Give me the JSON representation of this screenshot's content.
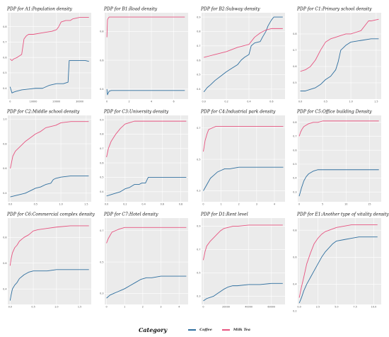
{
  "legend": {
    "title": "Category",
    "items": [
      {
        "name": "Coffee",
        "color": "#2f6f9f"
      },
      {
        "name": "Milk Tea",
        "color": "#e75480"
      }
    ]
  },
  "chart_data": [
    {
      "type": "line",
      "title": "PDP for A1:Population  density",
      "xticks": [
        "0",
        "10000",
        "20000",
        "30000"
      ],
      "xlim": [
        -1000,
        35000
      ],
      "yticks": [
        "0.4",
        "0.5",
        "0.6",
        "0.7",
        "0.8"
      ],
      "ylim": [
        0.33,
        0.89
      ],
      "series": [
        {
          "name": "Coffee",
          "x": [
            0,
            800,
            1500,
            2500,
            5000,
            8000,
            11000,
            14000,
            17000,
            20000,
            23000,
            25000,
            25500,
            27000,
            30000,
            32500,
            34000
          ],
          "y": [
            0.41,
            0.37,
            0.375,
            0.38,
            0.39,
            0.395,
            0.4,
            0.4,
            0.42,
            0.43,
            0.43,
            0.44,
            0.58,
            0.58,
            0.58,
            0.58,
            0.575
          ]
        },
        {
          "name": "Milk Tea",
          "x": [
            0,
            800,
            1500,
            3000,
            5000,
            6000,
            7000,
            8000,
            10000,
            14000,
            18000,
            20000,
            21000,
            22000,
            24000,
            26000,
            27000,
            30000,
            34000
          ],
          "y": [
            0.59,
            0.58,
            0.59,
            0.6,
            0.62,
            0.72,
            0.74,
            0.75,
            0.75,
            0.76,
            0.77,
            0.78,
            0.8,
            0.83,
            0.84,
            0.84,
            0.85,
            0.86,
            0.86
          ]
        }
      ]
    },
    {
      "type": "line",
      "title": "PDP for B1:Road  density",
      "xticks": [
        "0",
        "2",
        "4",
        "6"
      ],
      "xlim": [
        -0.2,
        7.3
      ],
      "yticks": [
        "0.4",
        "0.6",
        "0.8"
      ],
      "ylim": [
        0.33,
        0.93
      ],
      "series": [
        {
          "name": "Coffee",
          "x": [
            0,
            0.05,
            0.1,
            0.2,
            0.4,
            1,
            3,
            5,
            7
          ],
          "y": [
            0.4,
            0.36,
            0.37,
            0.385,
            0.39,
            0.39,
            0.39,
            0.39,
            0.39
          ]
        },
        {
          "name": "Milk Tea",
          "x": [
            0,
            0.05,
            0.1,
            0.2,
            1,
            3,
            5,
            7
          ],
          "y": [
            0.76,
            0.88,
            0.89,
            0.9,
            0.9,
            0.9,
            0.9,
            0.9
          ]
        }
      ]
    },
    {
      "type": "line",
      "title": "PDP for B2:Subway  density",
      "xticks": [
        "0.0",
        "0.2",
        "0.4",
        "0.6"
      ],
      "xlim": [
        -0.02,
        0.72
      ],
      "yticks": [
        "0.4",
        "0.5",
        "0.6",
        "0.7",
        "0.8",
        "0.9"
      ],
      "ylim": [
        0.33,
        0.93
      ],
      "series": [
        {
          "name": "Coffee",
          "x": [
            0,
            0.03,
            0.06,
            0.1,
            0.15,
            0.2,
            0.24,
            0.3,
            0.33,
            0.36,
            0.4,
            0.42,
            0.45,
            0.5,
            0.52,
            0.55,
            0.57,
            0.6,
            0.62,
            0.65,
            0.7
          ],
          "y": [
            0.38,
            0.41,
            0.43,
            0.46,
            0.49,
            0.52,
            0.54,
            0.57,
            0.6,
            0.62,
            0.64,
            0.7,
            0.72,
            0.73,
            0.76,
            0.8,
            0.84,
            0.88,
            0.9,
            0.9,
            0.9
          ]
        },
        {
          "name": "Milk Tea",
          "x": [
            0,
            0.05,
            0.1,
            0.2,
            0.3,
            0.35,
            0.4,
            0.45,
            0.5,
            0.55,
            0.6,
            0.65,
            0.7
          ],
          "y": [
            0.62,
            0.63,
            0.64,
            0.66,
            0.69,
            0.7,
            0.71,
            0.76,
            0.79,
            0.81,
            0.82,
            0.82,
            0.82
          ]
        }
      ]
    },
    {
      "type": "line",
      "title": "PDP for C1:Primary school density",
      "xticks": [
        "0.0",
        "0.5",
        "1.0",
        "1.5"
      ],
      "xlim": [
        -0.05,
        1.6
      ],
      "yticks": [
        "0.5",
        "0.6",
        "0.7",
        "0.8"
      ],
      "ylim": [
        0.4,
        0.93
      ],
      "series": [
        {
          "name": "Coffee",
          "x": [
            0,
            0.1,
            0.2,
            0.3,
            0.4,
            0.5,
            0.6,
            0.7,
            0.75,
            0.8,
            0.9,
            1.0,
            1.2,
            1.4,
            1.55
          ],
          "y": [
            0.45,
            0.45,
            0.46,
            0.47,
            0.49,
            0.52,
            0.54,
            0.58,
            0.63,
            0.7,
            0.73,
            0.75,
            0.76,
            0.77,
            0.77
          ]
        },
        {
          "name": "Milk Tea",
          "x": [
            0,
            0.1,
            0.2,
            0.3,
            0.4,
            0.5,
            0.6,
            0.7,
            0.8,
            0.9,
            1.0,
            1.1,
            1.2,
            1.3,
            1.35,
            1.4,
            1.55
          ],
          "y": [
            0.57,
            0.58,
            0.6,
            0.64,
            0.7,
            0.75,
            0.77,
            0.78,
            0.79,
            0.8,
            0.8,
            0.81,
            0.82,
            0.86,
            0.88,
            0.88,
            0.89
          ]
        }
      ]
    },
    {
      "type": "line",
      "title": "PDP for C2:Middle school density",
      "xticks": [
        "0.0",
        "0.5",
        "1.0",
        "1.5"
      ],
      "xlim": [
        -0.05,
        1.6
      ],
      "yticks": [
        "0.4",
        "0.6",
        "0.8",
        "1.0"
      ],
      "ylim": [
        0.33,
        1.03
      ],
      "series": [
        {
          "name": "Coffee",
          "x": [
            0,
            0.1,
            0.2,
            0.3,
            0.4,
            0.5,
            0.6,
            0.7,
            0.8,
            0.85,
            0.9,
            1.0,
            1.2,
            1.55
          ],
          "y": [
            0.37,
            0.38,
            0.39,
            0.4,
            0.42,
            0.44,
            0.45,
            0.47,
            0.48,
            0.51,
            0.52,
            0.53,
            0.54,
            0.54
          ]
        },
        {
          "name": "Milk Tea",
          "x": [
            0,
            0.05,
            0.1,
            0.2,
            0.3,
            0.4,
            0.5,
            0.6,
            0.7,
            0.8,
            0.9,
            1.0,
            1.2,
            1.55
          ],
          "y": [
            0.6,
            0.7,
            0.74,
            0.78,
            0.82,
            0.85,
            0.88,
            0.9,
            0.93,
            0.94,
            0.95,
            0.97,
            0.98,
            0.98
          ]
        }
      ]
    },
    {
      "type": "line",
      "title": "PDP for C3:University density",
      "xticks": [
        "0.0",
        "0.2",
        "0.4",
        "0.6",
        "0.8"
      ],
      "xlim": [
        -0.02,
        0.88
      ],
      "yticks": [
        "0.4",
        "0.5",
        "0.6",
        "0.7",
        "0.8",
        "0.9"
      ],
      "ylim": [
        0.33,
        0.93
      ],
      "series": [
        {
          "name": "Coffee",
          "x": [
            0,
            0.05,
            0.1,
            0.15,
            0.2,
            0.25,
            0.3,
            0.35,
            0.38,
            0.42,
            0.45,
            0.5,
            0.6,
            0.7,
            0.86
          ],
          "y": [
            0.37,
            0.38,
            0.39,
            0.4,
            0.42,
            0.43,
            0.45,
            0.45,
            0.46,
            0.46,
            0.5,
            0.5,
            0.5,
            0.5,
            0.5
          ]
        },
        {
          "name": "Milk Tea",
          "x": [
            0,
            0.02,
            0.05,
            0.1,
            0.15,
            0.2,
            0.25,
            0.3,
            0.35,
            0.4,
            0.5,
            0.6,
            0.86
          ],
          "y": [
            0.64,
            0.7,
            0.75,
            0.8,
            0.84,
            0.87,
            0.88,
            0.89,
            0.89,
            0.89,
            0.89,
            0.89,
            0.89
          ]
        }
      ]
    },
    {
      "type": "line",
      "title": "PDP for C4:Industrial park density",
      "xticks": [
        "0",
        "1",
        "2",
        "3",
        "4"
      ],
      "xlim": [
        -0.1,
        4.6
      ],
      "yticks": [
        "0.3",
        "0.5",
        "0.7"
      ],
      "ylim": [
        0.23,
        0.78
      ],
      "series": [
        {
          "name": "Coffee",
          "x": [
            0,
            0.2,
            0.4,
            0.6,
            0.8,
            1.0,
            1.2,
            1.5,
            2.0,
            2.5,
            3.0,
            3.5,
            4.0,
            4.5
          ],
          "y": [
            0.3,
            0.34,
            0.38,
            0.4,
            0.42,
            0.43,
            0.44,
            0.44,
            0.45,
            0.45,
            0.45,
            0.45,
            0.45,
            0.45
          ]
        },
        {
          "name": "Milk Tea",
          "x": [
            0,
            0.1,
            0.2,
            0.3,
            0.5,
            0.7,
            1.0,
            1.5,
            2.0,
            3.0,
            4.5
          ],
          "y": [
            0.55,
            0.62,
            0.66,
            0.69,
            0.7,
            0.71,
            0.71,
            0.71,
            0.71,
            0.71,
            0.71
          ]
        }
      ]
    },
    {
      "type": "line",
      "title": "PDP for C5:Office building Density",
      "xticks": [
        "0",
        "5",
        "10",
        "15"
      ],
      "xlim": [
        -0.3,
        17.5
      ],
      "yticks": [
        "0.3",
        "0.4",
        "0.5",
        "0.6",
        "0.7",
        "0.8"
      ],
      "ylim": [
        0.23,
        0.85
      ],
      "series": [
        {
          "name": "Coffee",
          "x": [
            0,
            0.5,
            1,
            1.5,
            2,
            3,
            4,
            5,
            7,
            10,
            13,
            17
          ],
          "y": [
            0.27,
            0.33,
            0.38,
            0.41,
            0.43,
            0.45,
            0.46,
            0.46,
            0.46,
            0.46,
            0.46,
            0.46
          ]
        },
        {
          "name": "Milk Tea",
          "x": [
            0,
            0.3,
            0.6,
            1,
            1.5,
            2,
            3,
            4,
            5,
            7,
            10,
            13,
            17
          ],
          "y": [
            0.7,
            0.73,
            0.75,
            0.77,
            0.78,
            0.79,
            0.8,
            0.8,
            0.81,
            0.81,
            0.81,
            0.81,
            0.81
          ]
        }
      ]
    },
    {
      "type": "line",
      "title": "PDP for C6:Commercial complex density",
      "xticks": [
        "0.0",
        "0.5",
        "1.0",
        "1.5"
      ],
      "xlim": [
        -0.05,
        1.75
      ],
      "yticks": [
        "0.4",
        "0.6",
        "0.8"
      ],
      "ylim": [
        0.28,
        0.95
      ],
      "series": [
        {
          "name": "Coffee",
          "x": [
            0,
            0.02,
            0.05,
            0.1,
            0.15,
            0.2,
            0.3,
            0.4,
            0.5,
            0.6,
            0.8,
            1.0,
            1.3,
            1.7
          ],
          "y": [
            0.31,
            0.35,
            0.4,
            0.43,
            0.45,
            0.48,
            0.51,
            0.53,
            0.54,
            0.54,
            0.54,
            0.55,
            0.55,
            0.55
          ]
        },
        {
          "name": "Milk Tea",
          "x": [
            0,
            0.02,
            0.05,
            0.1,
            0.15,
            0.2,
            0.3,
            0.4,
            0.5,
            0.6,
            0.8,
            1.0,
            1.3,
            1.7
          ],
          "y": [
            0.58,
            0.63,
            0.68,
            0.72,
            0.74,
            0.77,
            0.8,
            0.82,
            0.85,
            0.86,
            0.87,
            0.88,
            0.89,
            0.89
          ]
        }
      ]
    },
    {
      "type": "line",
      "title": "PDP for C7:Hotel density",
      "xticks": [
        "0",
        "1",
        "2",
        "3",
        "4"
      ],
      "xlim": [
        -0.1,
        4.5
      ],
      "yticks": [
        "0.3",
        "0.5",
        "0.7"
      ],
      "ylim": [
        0.23,
        0.78
      ],
      "series": [
        {
          "name": "Coffee",
          "x": [
            0,
            0.2,
            0.4,
            0.6,
            0.8,
            1.0,
            1.3,
            1.6,
            1.9,
            2.2,
            2.5,
            3.0,
            3.5,
            4.4
          ],
          "y": [
            0.27,
            0.29,
            0.3,
            0.31,
            0.32,
            0.33,
            0.35,
            0.37,
            0.39,
            0.4,
            0.4,
            0.41,
            0.41,
            0.41
          ]
        },
        {
          "name": "Milk Tea",
          "x": [
            0,
            0.1,
            0.2,
            0.3,
            0.5,
            0.7,
            1.0,
            1.5,
            2.0,
            3.0,
            4.4
          ],
          "y": [
            0.62,
            0.65,
            0.67,
            0.69,
            0.7,
            0.71,
            0.72,
            0.72,
            0.72,
            0.72,
            0.72
          ]
        }
      ]
    },
    {
      "type": "line",
      "title": "PDP for D1:Rent level",
      "xticks": [
        "0",
        "20000",
        "40000",
        "60000"
      ],
      "xlim": [
        -1500,
        72000
      ],
      "yticks": [
        "0.3",
        "0.5",
        "0.7",
        "0.9"
      ],
      "ylim": [
        0.23,
        0.97
      ],
      "series": [
        {
          "name": "Coffee",
          "x": [
            0,
            3000,
            6000,
            9000,
            12000,
            15000,
            18000,
            22000,
            26000,
            30000,
            40000,
            50000,
            60000,
            70000
          ],
          "y": [
            0.26,
            0.28,
            0.29,
            0.3,
            0.32,
            0.34,
            0.36,
            0.38,
            0.39,
            0.39,
            0.4,
            0.4,
            0.41,
            0.41
          ]
        },
        {
          "name": "Milk Tea",
          "x": [
            0,
            1500,
            3000,
            6000,
            9000,
            12000,
            15000,
            18000,
            22000,
            26000,
            30000,
            40000,
            50000,
            60000,
            70000
          ],
          "y": [
            0.61,
            0.68,
            0.73,
            0.77,
            0.8,
            0.83,
            0.86,
            0.88,
            0.89,
            0.9,
            0.9,
            0.91,
            0.91,
            0.91,
            0.91
          ]
        }
      ]
    },
    {
      "type": "line",
      "title": "PDP for E1:Another type of vitality density",
      "xticks": [
        "0.0",
        "2.5",
        "5.0",
        "7.5",
        "10.0"
      ],
      "xlim": [
        -0.2,
        11
      ],
      "yticks": [
        "0.2",
        "0.4",
        "0.6",
        "0.8"
      ],
      "ylim": [
        0.25,
        0.89
      ],
      "series": [
        {
          "name": "Coffee",
          "x": [
            0,
            0.3,
            0.6,
            1,
            1.5,
            2,
            2.5,
            3,
            3.5,
            4,
            4.5,
            5,
            6,
            7,
            8,
            9,
            10.5
          ],
          "y": [
            0.26,
            0.3,
            0.35,
            0.4,
            0.45,
            0.5,
            0.55,
            0.6,
            0.64,
            0.67,
            0.7,
            0.72,
            0.73,
            0.74,
            0.75,
            0.75,
            0.75
          ]
        },
        {
          "name": "Milk Tea",
          "x": [
            0,
            0.3,
            0.6,
            1,
            1.5,
            2,
            2.5,
            3,
            3.5,
            4,
            5,
            6,
            7,
            8,
            9,
            10.5
          ],
          "y": [
            0.3,
            0.38,
            0.45,
            0.55,
            0.63,
            0.7,
            0.74,
            0.77,
            0.79,
            0.8,
            0.82,
            0.83,
            0.84,
            0.84,
            0.84,
            0.84
          ]
        }
      ]
    }
  ]
}
